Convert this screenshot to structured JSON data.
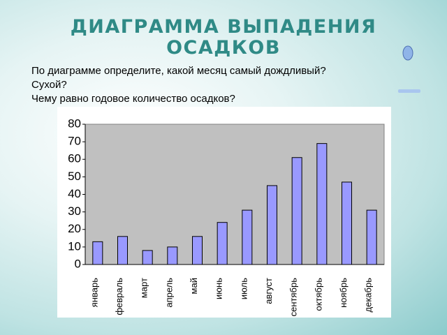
{
  "chart_data": {
    "type": "bar",
    "title": "ДИАГРАММА ВЫПАДЕНИЯ ОСАДКОВ",
    "annotations": [
      "По диаграмме определите, какой месяц самый дождливый?",
      "Сухой?",
      "Чему равно годовое количество осадков?"
    ],
    "categories": [
      "январь",
      "февраль",
      "март",
      "апрель",
      "май",
      "июнь",
      "июль",
      "август",
      "сентябрь",
      "октябрь",
      "ноябрь",
      "декабрь"
    ],
    "values": [
      13,
      16,
      8,
      10,
      16,
      24,
      31,
      45,
      61,
      69,
      47,
      31
    ],
    "color": "#9999ff",
    "ylim": [
      0,
      80
    ],
    "yticks": [
      0,
      10,
      20,
      30,
      40,
      50,
      60,
      70,
      80
    ],
    "grid": false
  }
}
